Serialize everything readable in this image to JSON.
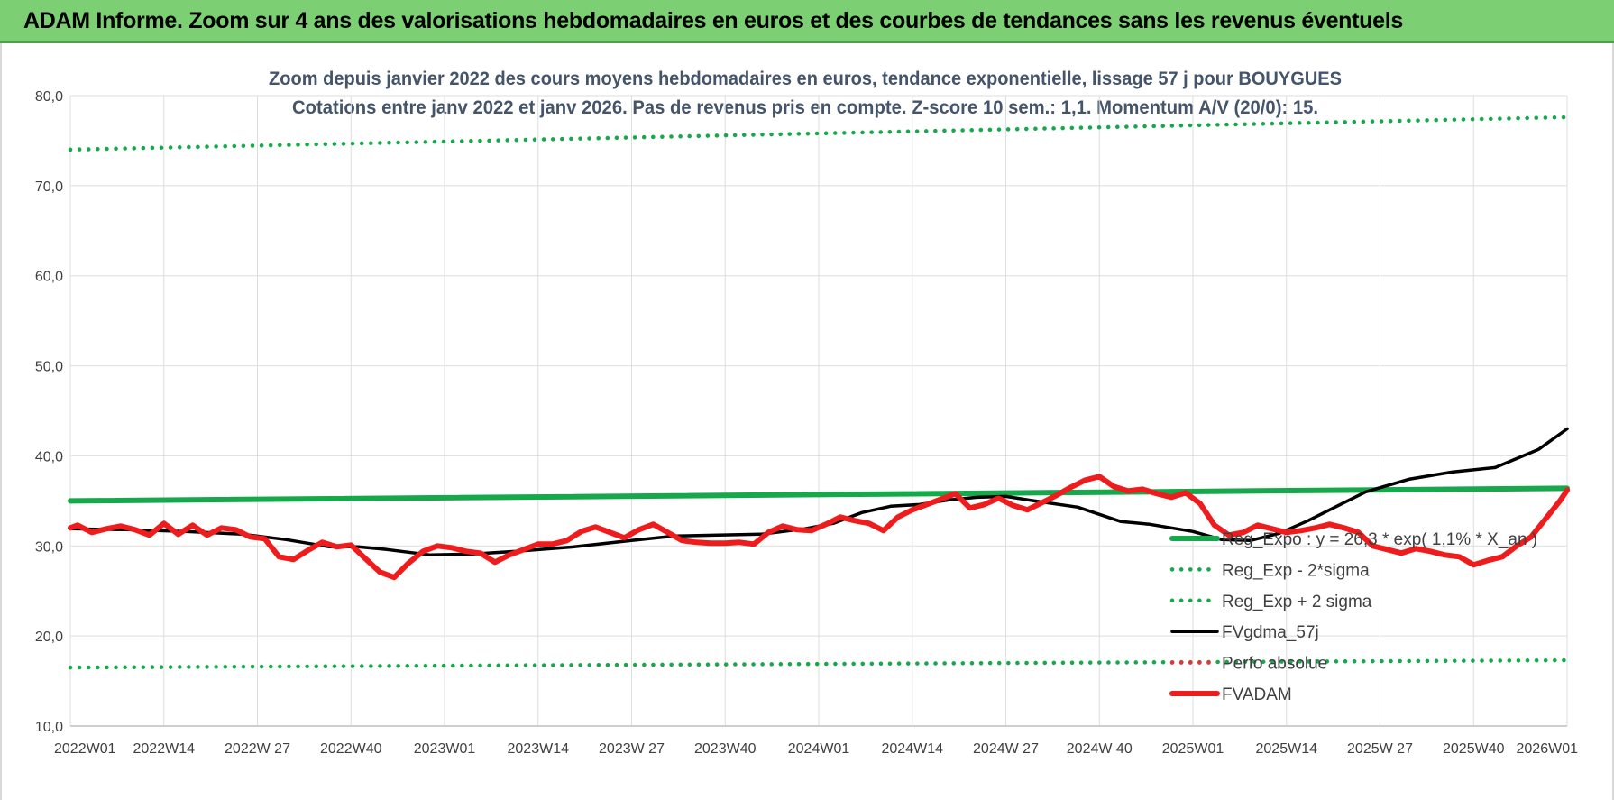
{
  "header": {
    "title": "ADAM Informe. Zoom sur 4 ans des valorisations hebdomadaires en euros et des courbes de tendances sans les revenus éventuels"
  },
  "chart_data": {
    "type": "line",
    "title": "Zoom depuis janvier 2022 des cours moyens hebdomadaires en euros, tendance exponentielle, lissage 57 j pour BOUYGUES",
    "subtitle": "Cotations entre janv 2022 et janv 2026. Pas de revenus pris en compte. Z-score 10 sem.: 1,1. Momentum A/V (20/0): 15.",
    "xlabel": "",
    "ylabel": "",
    "ylim": [
      10,
      80
    ],
    "yticks": [
      "10,0",
      "20,0",
      "30,0",
      "40,0",
      "50,0",
      "60,0",
      "70,0",
      "80,0"
    ],
    "x_range": [
      0,
      208
    ],
    "xtick_positions": [
      0,
      13,
      26,
      39,
      52,
      65,
      78,
      91,
      104,
      117,
      130,
      143,
      156,
      169,
      182,
      195,
      208
    ],
    "xtick_labels": [
      "2022W01",
      "2022W14",
      "2022W 27",
      "2022W40",
      "2023W01",
      "2023W14",
      "2023W 27",
      "2023W40",
      "2024W01",
      "2024W14",
      "2024W 27",
      "2024W 40",
      "2025W01",
      "2025W14",
      "2025W 27",
      "2025W40",
      "2026W01"
    ],
    "grid": true,
    "legend_position": "bottom-right",
    "series": [
      {
        "name": "Reg_Expo : y = 26,3 * exp( 1,1% *  X_an )",
        "style": "solid-thick",
        "color": "#16a84a",
        "x": [
          0,
          208
        ],
        "values": [
          35.0,
          36.4
        ]
      },
      {
        "name": "Reg_Exp - 2*sigma",
        "style": "dotted",
        "color": "#16a84a",
        "x": [
          0,
          208
        ],
        "values": [
          16.5,
          17.3
        ]
      },
      {
        "name": "Reg_Exp + 2 sigma",
        "style": "dotted",
        "color": "#16a84a",
        "x": [
          0,
          208
        ],
        "values": [
          74.0,
          77.6
        ]
      },
      {
        "name": "FVgdma_57j",
        "style": "solid",
        "color": "#000000",
        "x": [
          0,
          8,
          16,
          24,
          30,
          36,
          40,
          44,
          50,
          56,
          62,
          70,
          78,
          84,
          90,
          96,
          102,
          106,
          110,
          114,
          118,
          122,
          126,
          130,
          134,
          140,
          146,
          150,
          156,
          160,
          164,
          168,
          172,
          176,
          180,
          186,
          192,
          198,
          204,
          208
        ],
        "values": [
          31.9,
          31.8,
          31.6,
          31.3,
          30.7,
          29.9,
          29.9,
          29.6,
          29.0,
          29.1,
          29.4,
          29.9,
          30.6,
          31.1,
          31.2,
          31.3,
          31.9,
          32.5,
          33.7,
          34.4,
          34.6,
          35.1,
          35.4,
          35.5,
          35.0,
          34.3,
          32.7,
          32.4,
          31.6,
          30.7,
          30.6,
          31.4,
          32.8,
          34.4,
          36.0,
          37.4,
          38.2,
          38.7,
          40.7,
          43.0
        ]
      },
      {
        "name": "Perfo absolue",
        "style": "dotted",
        "color": "#e8333a",
        "x": [],
        "values": []
      },
      {
        "name": "FVADAM",
        "style": "solid-thick",
        "color": "#ee1c1c",
        "x": [
          0,
          1,
          3,
          5,
          7,
          9,
          11,
          13,
          15,
          17,
          19,
          21,
          23,
          25,
          27,
          29,
          31,
          33,
          35,
          37,
          39,
          41,
          43,
          45,
          47,
          49,
          51,
          53,
          55,
          57,
          59,
          61,
          63,
          65,
          67,
          69,
          71,
          73,
          75,
          77,
          79,
          81,
          83,
          85,
          87,
          89,
          91,
          93,
          95,
          97,
          99,
          101,
          103,
          105,
          107,
          109,
          111,
          113,
          115,
          117,
          119,
          121,
          123,
          125,
          127,
          129,
          131,
          133,
          135,
          137,
          139,
          141,
          143,
          145,
          147,
          149,
          151,
          153,
          155,
          157,
          159,
          161,
          163,
          165,
          167,
          169,
          171,
          173,
          175,
          177,
          179,
          181,
          183,
          185,
          187,
          189,
          191,
          193,
          195,
          197,
          199,
          201,
          203,
          205,
          207,
          208
        ],
        "values": [
          32.0,
          32.3,
          31.5,
          31.9,
          32.2,
          31.8,
          31.2,
          32.5,
          31.3,
          32.3,
          31.2,
          32.0,
          31.8,
          31.0,
          30.8,
          28.8,
          28.5,
          29.5,
          30.4,
          29.9,
          30.1,
          28.6,
          27.1,
          26.5,
          28.1,
          29.4,
          30.0,
          29.8,
          29.4,
          29.2,
          28.2,
          29.0,
          29.6,
          30.2,
          30.2,
          30.6,
          31.6,
          32.1,
          31.5,
          30.9,
          31.8,
          32.4,
          31.5,
          30.6,
          30.4,
          30.3,
          30.3,
          30.4,
          30.2,
          31.5,
          32.2,
          31.8,
          31.7,
          32.4,
          33.2,
          32.8,
          32.5,
          31.7,
          33.2,
          34.0,
          34.6,
          35.2,
          35.8,
          34.2,
          34.6,
          35.3,
          34.5,
          34.0,
          34.8,
          35.6,
          36.5,
          37.3,
          37.7,
          36.6,
          36.1,
          36.3,
          35.8,
          35.4,
          35.9,
          34.7,
          32.3,
          31.2,
          31.5,
          32.3,
          31.9,
          31.5,
          31.7,
          32.0,
          32.4,
          32.0,
          31.5,
          30.0,
          29.6,
          29.2,
          29.7,
          29.4,
          29.0,
          28.8,
          27.9,
          28.4,
          28.8,
          30.0,
          31.0,
          33.0,
          35.0,
          36.2
        ]
      }
    ]
  }
}
